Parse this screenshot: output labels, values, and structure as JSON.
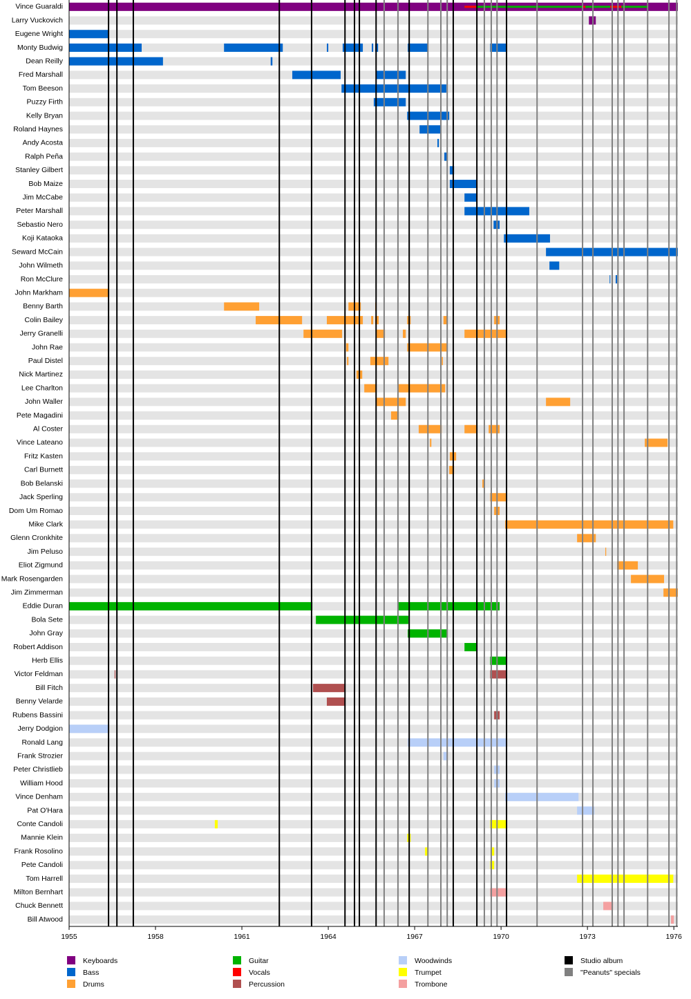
{
  "chart_data": {
    "type": "timeline",
    "xlim": [
      1955,
      1976.14
    ],
    "xticks": [
      1955,
      1958,
      1961,
      1964,
      1967,
      1970,
      1973,
      1976
    ],
    "roles": [
      {
        "name": "Keyboards",
        "color": "#800080"
      },
      {
        "name": "Bass",
        "color": "#0066cc"
      },
      {
        "name": "Drums",
        "color": "#ffa033"
      },
      {
        "name": "Guitar",
        "color": "#00b300"
      },
      {
        "name": "Vocals",
        "color": "#ff0000"
      },
      {
        "name": "Percussion",
        "color": "#b05050"
      },
      {
        "name": "Woodwinds",
        "color": "#b8cff8"
      },
      {
        "name": "Trumpet",
        "color": "#ffff00"
      },
      {
        "name": "Trombone",
        "color": "#f4a0a0"
      }
    ],
    "events": [
      {
        "name": "Studio album",
        "color": "#000000",
        "dates": [
          1956.37,
          1956.66,
          1957.23,
          1962.3,
          1963.42,
          1964.58,
          1964.91,
          1965.08,
          1965.66,
          1966.81,
          1968.34,
          1969.16,
          1970.19
        ]
      },
      {
        "name": "\"Peanuts\" specials",
        "color": "#808080",
        "dates": [
          1965.94,
          1966.42,
          1967.46,
          1967.91,
          1968.13,
          1969.42,
          1969.66,
          1969.86,
          1971.25,
          1972.83,
          1973.19,
          1973.86,
          1974.06,
          1974.27,
          1975.09,
          1975.83,
          1976.1
        ]
      }
    ],
    "members": [
      {
        "name": "Vince Guaraldi",
        "periods": [
          {
            "role": "Keyboards",
            "start": 1955,
            "end": 1976.14
          },
          {
            "role": "Guitar",
            "start": 1968.73,
            "end": 1975.09,
            "thin": true
          },
          {
            "role": "Vocals",
            "start": 1968.73,
            "end": 1969.18,
            "thin": true
          },
          {
            "role": "Vocals",
            "start": 1972.83,
            "end": 1972.93,
            "thin": true
          },
          {
            "role": "Vocals",
            "start": 1973.79,
            "end": 1974.18,
            "thin": true
          }
        ]
      },
      {
        "name": "Larry Vuckovich",
        "periods": [
          {
            "role": "Keyboards",
            "start": 1973.05,
            "end": 1973.29
          }
        ]
      },
      {
        "name": "Eugene Wright",
        "periods": [
          {
            "role": "Bass",
            "start": 1955,
            "end": 1956.37
          }
        ]
      },
      {
        "name": "Monty Budwig",
        "periods": [
          {
            "role": "Bass",
            "start": 1955,
            "end": 1957.52
          },
          {
            "role": "Bass",
            "start": 1960.38,
            "end": 1962.42
          },
          {
            "role": "Bass",
            "start": 1963.95,
            "end": 1964.0
          },
          {
            "role": "Bass",
            "start": 1964.5,
            "end": 1965.2
          },
          {
            "role": "Bass",
            "start": 1965.51,
            "end": 1965.56
          },
          {
            "role": "Bass",
            "start": 1965.63,
            "end": 1965.73
          },
          {
            "role": "Bass",
            "start": 1966.76,
            "end": 1967.46
          },
          {
            "role": "Bass",
            "start": 1969.62,
            "end": 1970.19
          }
        ]
      },
      {
        "name": "Dean Reilly",
        "periods": [
          {
            "role": "Bass",
            "start": 1955,
            "end": 1958.26
          },
          {
            "role": "Bass",
            "start": 1962.0,
            "end": 1962.06
          }
        ]
      },
      {
        "name": "Fred Marshall",
        "periods": [
          {
            "role": "Bass",
            "start": 1962.75,
            "end": 1964.43
          },
          {
            "role": "Bass",
            "start": 1965.66,
            "end": 1966.69
          }
        ]
      },
      {
        "name": "Tom Beeson",
        "periods": [
          {
            "role": "Bass",
            "start": 1964.46,
            "end": 1968.1
          }
        ]
      },
      {
        "name": "Puzzy Firth",
        "periods": [
          {
            "role": "Bass",
            "start": 1965.58,
            "end": 1966.69
          }
        ]
      },
      {
        "name": "Kelly Bryan",
        "periods": [
          {
            "role": "Bass",
            "start": 1966.74,
            "end": 1968.2
          }
        ]
      },
      {
        "name": "Roland Haynes",
        "periods": [
          {
            "role": "Bass",
            "start": 1967.17,
            "end": 1967.91
          }
        ]
      },
      {
        "name": "Andy Acosta",
        "periods": [
          {
            "role": "Bass",
            "start": 1967.79,
            "end": 1967.84
          }
        ]
      },
      {
        "name": "Ralph Peña",
        "periods": [
          {
            "role": "Bass",
            "start": 1968.03,
            "end": 1968.15
          }
        ]
      },
      {
        "name": "Stanley Gilbert",
        "periods": [
          {
            "role": "Bass",
            "start": 1968.22,
            "end": 1968.37
          }
        ]
      },
      {
        "name": "Bob Maize",
        "periods": [
          {
            "role": "Bass",
            "start": 1968.22,
            "end": 1969.18
          }
        ]
      },
      {
        "name": "Jim McCabe",
        "periods": [
          {
            "role": "Bass",
            "start": 1968.73,
            "end": 1969.18
          }
        ]
      },
      {
        "name": "Peter Marshall",
        "periods": [
          {
            "role": "Bass",
            "start": 1968.73,
            "end": 1970.98
          }
        ]
      },
      {
        "name": "Sebastio Nero",
        "periods": [
          {
            "role": "Bass",
            "start": 1969.74,
            "end": 1969.95
          }
        ]
      },
      {
        "name": "Koji Kataoka",
        "periods": [
          {
            "role": "Bass",
            "start": 1970.1,
            "end": 1971.7
          }
        ]
      },
      {
        "name": "Seward McCain",
        "periods": [
          {
            "role": "Bass",
            "start": 1971.56,
            "end": 1976.14
          }
        ]
      },
      {
        "name": "John Wilmeth",
        "periods": [
          {
            "role": "Bass",
            "start": 1971.68,
            "end": 1972.02
          }
        ]
      },
      {
        "name": "Ron McClure",
        "periods": [
          {
            "role": "Bass",
            "start": 1973.77,
            "end": 1973.79
          },
          {
            "role": "Bass",
            "start": 1973.98,
            "end": 1974.03
          }
        ]
      },
      {
        "name": "John Markham",
        "periods": [
          {
            "role": "Drums",
            "start": 1955,
            "end": 1956.39
          }
        ]
      },
      {
        "name": "Benny Barth",
        "periods": [
          {
            "role": "Drums",
            "start": 1960.38,
            "end": 1961.6
          },
          {
            "role": "Drums",
            "start": 1964.7,
            "end": 1965.13
          },
          {
            "role": "Drums",
            "start": 1965.63,
            "end": 1965.68
          }
        ]
      },
      {
        "name": "Colin Bailey",
        "periods": [
          {
            "role": "Drums",
            "start": 1961.48,
            "end": 1963.09
          },
          {
            "role": "Drums",
            "start": 1963.95,
            "end": 1965.2
          },
          {
            "role": "Drums",
            "start": 1965.49,
            "end": 1965.56
          },
          {
            "role": "Drums",
            "start": 1965.63,
            "end": 1965.75
          },
          {
            "role": "Drums",
            "start": 1966.74,
            "end": 1966.86
          },
          {
            "role": "Drums",
            "start": 1968.0,
            "end": 1968.15
          },
          {
            "role": "Drums",
            "start": 1969.76,
            "end": 1969.95
          }
        ]
      },
      {
        "name": "Jerry Granelli",
        "periods": [
          {
            "role": "Drums",
            "start": 1963.14,
            "end": 1964.48
          },
          {
            "role": "Drums",
            "start": 1965.66,
            "end": 1965.97
          },
          {
            "role": "Drums",
            "start": 1966.59,
            "end": 1966.69
          },
          {
            "role": "Drums",
            "start": 1968.73,
            "end": 1970.19
          }
        ]
      },
      {
        "name": "John Rae",
        "periods": [
          {
            "role": "Drums",
            "start": 1964.62,
            "end": 1964.7
          },
          {
            "role": "Drums",
            "start": 1966.74,
            "end": 1968.13
          }
        ]
      },
      {
        "name": "Paul Distel",
        "periods": [
          {
            "role": "Drums",
            "start": 1964.65,
            "end": 1964.7
          },
          {
            "role": "Drums",
            "start": 1965.46,
            "end": 1966.09
          },
          {
            "role": "Drums",
            "start": 1967.94,
            "end": 1967.98
          }
        ]
      },
      {
        "name": "Nick Martinez",
        "periods": [
          {
            "role": "Drums",
            "start": 1964.98,
            "end": 1965.18
          }
        ]
      },
      {
        "name": "Lee Charlton",
        "periods": [
          {
            "role": "Drums",
            "start": 1965.25,
            "end": 1965.68
          },
          {
            "role": "Drums",
            "start": 1966.4,
            "end": 1968.06
          }
        ]
      },
      {
        "name": "John Waller",
        "periods": [
          {
            "role": "Drums",
            "start": 1965.66,
            "end": 1966.69
          },
          {
            "role": "Drums",
            "start": 1971.56,
            "end": 1972.4
          }
        ]
      },
      {
        "name": "Pete Magadini",
        "periods": [
          {
            "role": "Drums",
            "start": 1966.18,
            "end": 1966.45
          }
        ]
      },
      {
        "name": "Al Coster",
        "periods": [
          {
            "role": "Drums",
            "start": 1967.14,
            "end": 1967.94
          },
          {
            "role": "Drums",
            "start": 1968.73,
            "end": 1969.18
          },
          {
            "role": "Drums",
            "start": 1969.57,
            "end": 1969.95
          }
        ]
      },
      {
        "name": "Vince Lateano",
        "periods": [
          {
            "role": "Drums",
            "start": 1967.53,
            "end": 1967.58
          },
          {
            "role": "Drums",
            "start": 1974.99,
            "end": 1975.78
          }
        ]
      },
      {
        "name": "Fritz Kasten",
        "periods": [
          {
            "role": "Drums",
            "start": 1968.22,
            "end": 1968.44
          }
        ]
      },
      {
        "name": "Carl Burnett",
        "periods": [
          {
            "role": "Drums",
            "start": 1968.2,
            "end": 1968.37
          }
        ]
      },
      {
        "name": "Bob Belanski",
        "periods": [
          {
            "role": "Drums",
            "start": 1969.35,
            "end": 1969.4
          }
        ]
      },
      {
        "name": "Jack Sperling",
        "periods": [
          {
            "role": "Drums",
            "start": 1969.62,
            "end": 1970.19
          }
        ]
      },
      {
        "name": "Dom Um Romao",
        "periods": [
          {
            "role": "Drums",
            "start": 1969.76,
            "end": 1969.95
          }
        ]
      },
      {
        "name": "Mike Clark",
        "periods": [
          {
            "role": "Drums",
            "start": 1970.14,
            "end": 1975.98
          }
        ]
      },
      {
        "name": "Glenn Cronkhite",
        "periods": [
          {
            "role": "Drums",
            "start": 1972.64,
            "end": 1973.29
          }
        ]
      },
      {
        "name": "Jim Peluso",
        "periods": [
          {
            "role": "Drums",
            "start": 1973.62,
            "end": 1973.65
          }
        ]
      },
      {
        "name": "Eliot Zigmund",
        "periods": [
          {
            "role": "Drums",
            "start": 1974.03,
            "end": 1974.75
          }
        ]
      },
      {
        "name": "Mark Rosengarden",
        "periods": [
          {
            "role": "Drums",
            "start": 1974.51,
            "end": 1975.66
          }
        ]
      },
      {
        "name": "Jim Zimmerman",
        "periods": [
          {
            "role": "Drums",
            "start": 1975.64,
            "end": 1976.14
          }
        ]
      },
      {
        "name": "Eddie Duran",
        "periods": [
          {
            "role": "Guitar",
            "start": 1955,
            "end": 1963.45
          },
          {
            "role": "Guitar",
            "start": 1966.42,
            "end": 1969.95
          }
        ]
      },
      {
        "name": "Bola Sete",
        "periods": [
          {
            "role": "Guitar",
            "start": 1963.57,
            "end": 1966.78
          }
        ]
      },
      {
        "name": "John Gray",
        "periods": [
          {
            "role": "Guitar",
            "start": 1966.76,
            "end": 1968.15
          }
        ]
      },
      {
        "name": "Robert Addison",
        "periods": [
          {
            "role": "Guitar",
            "start": 1968.73,
            "end": 1969.18
          }
        ]
      },
      {
        "name": "Herb Ellis",
        "periods": [
          {
            "role": "Guitar",
            "start": 1969.62,
            "end": 1970.19
          }
        ]
      },
      {
        "name": "Victor Feldman",
        "periods": [
          {
            "role": "Percussion",
            "start": 1956.58,
            "end": 1956.61
          },
          {
            "role": "Percussion",
            "start": 1969.62,
            "end": 1970.19
          }
        ]
      },
      {
        "name": "Bill Fitch",
        "periods": [
          {
            "role": "Percussion",
            "start": 1963.47,
            "end": 1964.6
          }
        ]
      },
      {
        "name": "Benny Velarde",
        "periods": [
          {
            "role": "Percussion",
            "start": 1963.95,
            "end": 1964.6
          }
        ]
      },
      {
        "name": "Rubens Bassini",
        "periods": [
          {
            "role": "Percussion",
            "start": 1969.76,
            "end": 1969.95
          }
        ]
      },
      {
        "name": "Jerry Dodgion",
        "periods": [
          {
            "role": "Woodwinds",
            "start": 1955,
            "end": 1956.39
          }
        ]
      },
      {
        "name": "Ronald Lang",
        "periods": [
          {
            "role": "Woodwinds",
            "start": 1966.76,
            "end": 1970.19
          }
        ]
      },
      {
        "name": "Frank Strozier",
        "periods": [
          {
            "role": "Woodwinds",
            "start": 1968.0,
            "end": 1968.15
          }
        ]
      },
      {
        "name": "Peter Christlieb",
        "periods": [
          {
            "role": "Woodwinds",
            "start": 1969.76,
            "end": 1969.95
          }
        ]
      },
      {
        "name": "William Hood",
        "periods": [
          {
            "role": "Woodwinds",
            "start": 1969.76,
            "end": 1969.95
          }
        ]
      },
      {
        "name": "Vince Denham",
        "periods": [
          {
            "role": "Woodwinds",
            "start": 1970.14,
            "end": 1972.69
          }
        ]
      },
      {
        "name": "Pat O'Hara",
        "periods": [
          {
            "role": "Woodwinds",
            "start": 1972.64,
            "end": 1973.24
          }
        ]
      },
      {
        "name": "Conte Candoli",
        "periods": [
          {
            "role": "Trumpet",
            "start": 1960.06,
            "end": 1960.16
          },
          {
            "role": "Trumpet",
            "start": 1969.62,
            "end": 1970.19
          }
        ]
      },
      {
        "name": "Mannie Klein",
        "periods": [
          {
            "role": "Trumpet",
            "start": 1966.74,
            "end": 1966.86
          }
        ]
      },
      {
        "name": "Frank Rosolino",
        "periods": [
          {
            "role": "Trumpet",
            "start": 1967.36,
            "end": 1967.48
          },
          {
            "role": "Trumpet",
            "start": 1969.66,
            "end": 1969.76
          }
        ]
      },
      {
        "name": "Pete Candoli",
        "periods": [
          {
            "role": "Trumpet",
            "start": 1969.62,
            "end": 1969.76
          }
        ]
      },
      {
        "name": "Tom Harrell",
        "periods": [
          {
            "role": "Trumpet",
            "start": 1972.64,
            "end": 1975.98
          }
        ]
      },
      {
        "name": "Milton Bernhart",
        "periods": [
          {
            "role": "Trombone",
            "start": 1969.62,
            "end": 1970.19
          }
        ]
      },
      {
        "name": "Chuck Bennett",
        "periods": [
          {
            "role": "Trombone",
            "start": 1973.55,
            "end": 1973.89
          }
        ]
      },
      {
        "name": "Bill Atwood",
        "periods": [
          {
            "role": "Trombone",
            "start": 1975.9,
            "end": 1976.0
          }
        ]
      }
    ]
  }
}
